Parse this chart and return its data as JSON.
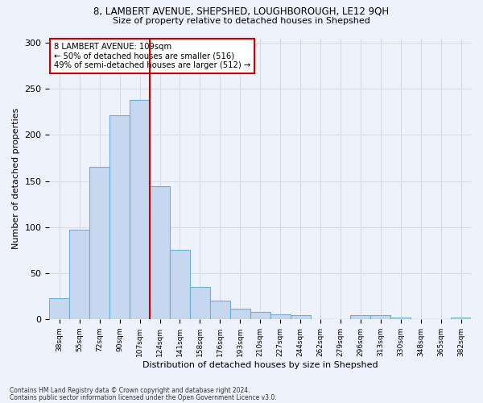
{
  "title1": "8, LAMBERT AVENUE, SHEPSHED, LOUGHBOROUGH, LE12 9QH",
  "title2": "Size of property relative to detached houses in Shepshed",
  "xlabel": "Distribution of detached houses by size in Shepshed",
  "ylabel": "Number of detached properties",
  "bar_color": "#c5d8f0",
  "bar_edge_color": "#6baed6",
  "categories": [
    "38sqm",
    "55sqm",
    "72sqm",
    "90sqm",
    "107sqm",
    "124sqm",
    "141sqm",
    "158sqm",
    "176sqm",
    "193sqm",
    "210sqm",
    "227sqm",
    "244sqm",
    "262sqm",
    "279sqm",
    "296sqm",
    "313sqm",
    "330sqm",
    "348sqm",
    "365sqm",
    "382sqm"
  ],
  "values": [
    23,
    97,
    165,
    221,
    238,
    144,
    75,
    35,
    20,
    11,
    8,
    5,
    4,
    0,
    0,
    4,
    4,
    2,
    0,
    0,
    2
  ],
  "ylim": [
    0,
    305
  ],
  "yticks": [
    0,
    50,
    100,
    150,
    200,
    250,
    300
  ],
  "vline_x_index": 4,
  "annotation_text": "8 LAMBERT AVENUE: 109sqm\n← 50% of detached houses are smaller (516)\n49% of semi-detached houses are larger (512) →",
  "annotation_box_color": "#ffffff",
  "annotation_box_edge_color": "#cc0000",
  "vline_color": "#cc0000",
  "footer1": "Contains HM Land Registry data © Crown copyright and database right 2024.",
  "footer2": "Contains public sector information licensed under the Open Government Licence v3.0.",
  "background_color": "#eef2fa",
  "grid_color": "#d8dce8"
}
